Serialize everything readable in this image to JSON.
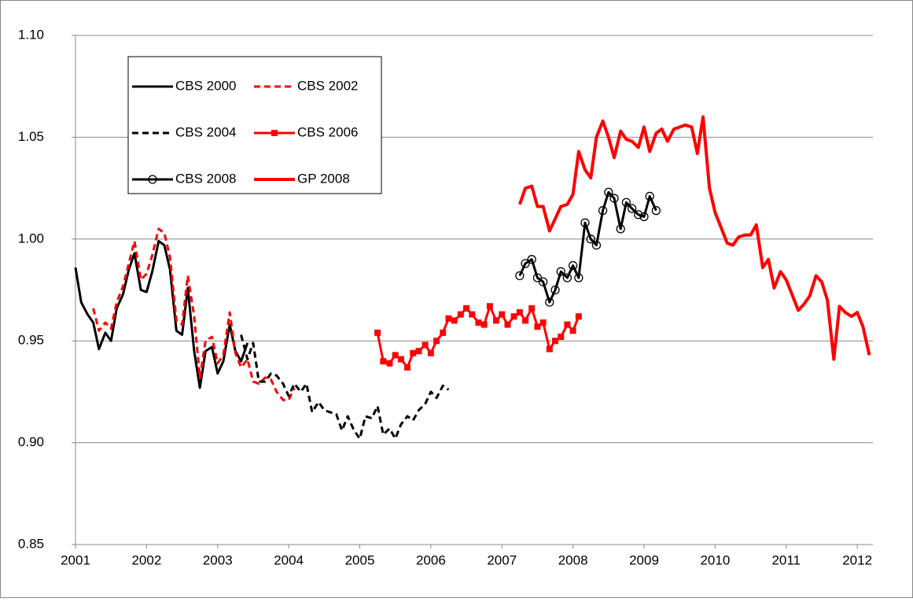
{
  "chart_data": {
    "type": "line",
    "grid": true,
    "legend_position": "upper left",
    "xlim": [
      2001,
      2012.22
    ],
    "xticks": [
      2001,
      2002,
      2003,
      2004,
      2005,
      2006,
      2007,
      2008,
      2009,
      2010,
      2011,
      2012
    ],
    "ylim": [
      0.85,
      1.1
    ],
    "yticks": [
      {
        "value": 0.85,
        "label": "0.85"
      },
      {
        "value": 0.9,
        "label": "0.90"
      },
      0.95,
      {
        "value": 1.0,
        "label": "1.00"
      },
      1.05,
      {
        "value": 1.1,
        "label": "1.10"
      }
    ],
    "series": [
      {
        "name": "CBS 2000",
        "color": "#000000",
        "line_style": "solid",
        "marker": "none",
        "line_width": 3,
        "x": [
          2001,
          2001.08,
          2001.17,
          2001.25,
          2001.33,
          2001.42,
          2001.5,
          2001.58,
          2001.67,
          2001.75,
          2001.83,
          2001.92,
          2002,
          2002.08,
          2002.17,
          2002.25,
          2002.33,
          2002.42,
          2002.5,
          2002.58,
          2002.67,
          2002.75,
          2002.83,
          2002.92,
          2003,
          2003.08,
          2003.17,
          2003.25,
          2003.33,
          2003.42
        ],
        "values": [
          0.986,
          0.969,
          0.963,
          0.959,
          0.946,
          0.954,
          0.95,
          0.966,
          0.973,
          0.985,
          0.993,
          0.975,
          0.974,
          0.984,
          0.999,
          0.997,
          0.985,
          0.955,
          0.953,
          0.976,
          0.945,
          0.927,
          0.945,
          0.947,
          0.934,
          0.94,
          0.958,
          0.945,
          0.94,
          0.949
        ]
      },
      {
        "name": "CBS 2002",
        "color": "#ff0000",
        "line_style": "dashed",
        "marker": "none",
        "line_width": 3,
        "x": [
          2001.25,
          2001.33,
          2001.42,
          2001.5,
          2001.58,
          2001.67,
          2001.75,
          2001.83,
          2001.92,
          2002,
          2002.08,
          2002.17,
          2002.25,
          2002.33,
          2002.42,
          2002.5,
          2002.58,
          2002.67,
          2002.75,
          2002.83,
          2002.92,
          2003,
          2003.08,
          2003.17,
          2003.25,
          2003.33,
          2003.42,
          2003.5,
          2003.58,
          2003.67,
          2003.75,
          2003.83,
          2003.92,
          2004,
          2004.08
        ],
        "values": [
          0.966,
          0.955,
          0.959,
          0.956,
          0.969,
          0.977,
          0.988,
          0.999,
          0.98,
          0.983,
          0.992,
          1.005,
          1.003,
          0.991,
          0.96,
          0.958,
          0.982,
          0.962,
          0.932,
          0.95,
          0.952,
          0.939,
          0.943,
          0.964,
          0.944,
          0.937,
          0.941,
          0.93,
          0.929,
          0.932,
          0.931,
          0.925,
          0.921,
          0.921,
          0.927
        ]
      },
      {
        "name": "CBS 2004",
        "color": "#000000",
        "line_style": "dashed",
        "marker": "none",
        "line_width": 3,
        "x": [
          2003.33,
          2003.42,
          2003.5,
          2003.58,
          2003.67,
          2003.75,
          2003.83,
          2003.92,
          2004,
          2004.08,
          2004.17,
          2004.25,
          2004.33,
          2004.42,
          2004.5,
          2004.58,
          2004.67,
          2004.75,
          2004.83,
          2004.92,
          2005,
          2005.08,
          2005.17,
          2005.25,
          2005.33,
          2005.42,
          2005.5,
          2005.58,
          2005.67,
          2005.75,
          2005.83,
          2005.92,
          2006,
          2006.08,
          2006.17,
          2006.25
        ],
        "values": [
          0.953,
          0.941,
          0.949,
          0.93,
          0.93,
          0.934,
          0.933,
          0.929,
          0.923,
          0.929,
          0.925,
          0.929,
          0.915,
          0.92,
          0.916,
          0.915,
          0.914,
          0.906,
          0.913,
          0.906,
          0.902,
          0.913,
          0.912,
          0.918,
          0.904,
          0.907,
          0.902,
          0.909,
          0.913,
          0.911,
          0.916,
          0.919,
          0.925,
          0.922,
          0.928,
          0.926
        ]
      },
      {
        "name": "CBS 2006",
        "color": "#ff0000",
        "line_style": "solid",
        "marker": "square",
        "line_width": 3,
        "x": [
          2005.25,
          2005.33,
          2005.42,
          2005.5,
          2005.58,
          2005.67,
          2005.75,
          2005.83,
          2005.92,
          2006,
          2006.08,
          2006.17,
          2006.25,
          2006.33,
          2006.42,
          2006.5,
          2006.58,
          2006.67,
          2006.75,
          2006.83,
          2006.92,
          2007,
          2007.08,
          2007.17,
          2007.25,
          2007.33,
          2007.42,
          2007.5,
          2007.58,
          2007.67,
          2007.75,
          2007.83,
          2007.92,
          2008,
          2008.08
        ],
        "values": [
          0.954,
          0.94,
          0.939,
          0.943,
          0.941,
          0.937,
          0.944,
          0.945,
          0.948,
          0.944,
          0.95,
          0.954,
          0.961,
          0.96,
          0.963,
          0.966,
          0.963,
          0.959,
          0.958,
          0.967,
          0.96,
          0.963,
          0.958,
          0.962,
          0.964,
          0.96,
          0.966,
          0.957,
          0.959,
          0.946,
          0.95,
          0.952,
          0.958,
          0.955,
          0.962
        ]
      },
      {
        "name": "CBS 2008",
        "color": "#000000",
        "line_style": "solid",
        "marker": "circle",
        "line_width": 3,
        "x": [
          2007.25,
          2007.33,
          2007.42,
          2007.5,
          2007.58,
          2007.67,
          2007.75,
          2007.83,
          2007.92,
          2008,
          2008.08,
          2008.17,
          2008.25,
          2008.33,
          2008.42,
          2008.5,
          2008.58,
          2008.67,
          2008.75,
          2008.83,
          2008.92,
          2009,
          2009.08,
          2009.17
        ],
        "values": [
          0.982,
          0.988,
          0.99,
          0.981,
          0.979,
          0.969,
          0.975,
          0.984,
          0.981,
          0.987,
          0.981,
          1.008,
          1.0,
          0.997,
          1.014,
          1.023,
          1.02,
          1.005,
          1.018,
          1.015,
          1.012,
          1.011,
          1.021,
          1.014
        ]
      },
      {
        "name": "GP 2008",
        "color": "#ff0000",
        "line_style": "solid",
        "marker": "none",
        "line_width": 4,
        "x": [
          2007.25,
          2007.33,
          2007.42,
          2007.5,
          2007.58,
          2007.67,
          2007.75,
          2007.83,
          2007.92,
          2008,
          2008.08,
          2008.17,
          2008.25,
          2008.33,
          2008.42,
          2008.5,
          2008.58,
          2008.67,
          2008.75,
          2008.83,
          2008.92,
          2009,
          2009.08,
          2009.17,
          2009.25,
          2009.33,
          2009.42,
          2009.5,
          2009.58,
          2009.67,
          2009.75,
          2009.83,
          2009.92,
          2010,
          2010.08,
          2010.17,
          2010.25,
          2010.33,
          2010.42,
          2010.5,
          2010.58,
          2010.67,
          2010.75,
          2010.83,
          2010.92,
          2011,
          2011.08,
          2011.17,
          2011.25,
          2011.33,
          2011.42,
          2011.5,
          2011.58,
          2011.67,
          2011.75,
          2011.83,
          2011.92,
          2012,
          2012.08,
          2012.17
        ],
        "values": [
          1.017,
          1.025,
          1.026,
          1.016,
          1.016,
          1.004,
          1.01,
          1.016,
          1.017,
          1.022,
          1.043,
          1.034,
          1.03,
          1.05,
          1.058,
          1.05,
          1.04,
          1.053,
          1.049,
          1.048,
          1.045,
          1.055,
          1.043,
          1.052,
          1.054,
          1.048,
          1.054,
          1.055,
          1.056,
          1.055,
          1.042,
          1.06,
          1.025,
          1.013,
          1.006,
          0.998,
          0.997,
          1.001,
          1.002,
          1.002,
          1.007,
          0.986,
          0.99,
          0.976,
          0.984,
          0.98,
          0.973,
          0.965,
          0.968,
          0.972,
          0.982,
          0.979,
          0.97,
          0.941,
          0.967,
          0.964,
          0.962,
          0.964,
          0.957,
          0.943
        ]
      }
    ]
  }
}
